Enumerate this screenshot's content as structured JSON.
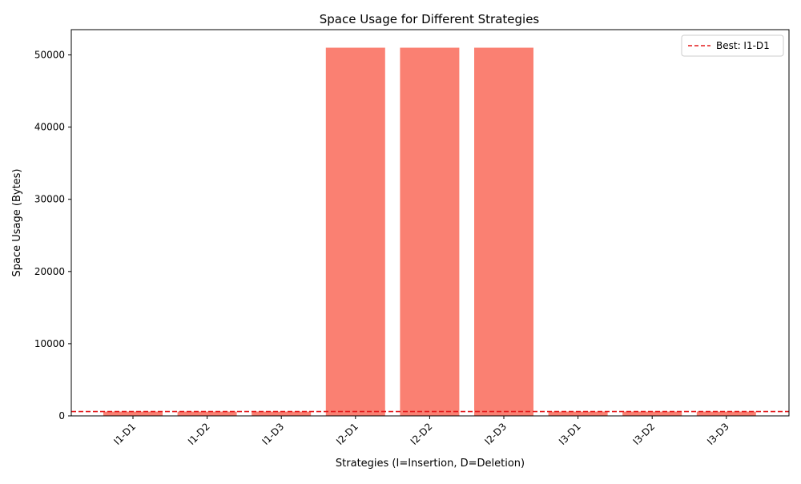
{
  "chart_data": {
    "type": "bar",
    "title": "Space Usage for Different Strategies",
    "xlabel": "Strategies (I=Insertion, D=Deletion)",
    "ylabel": "Space Usage (Bytes)",
    "categories": [
      "I1-D1",
      "I1-D2",
      "I1-D3",
      "I2-D1",
      "I2-D2",
      "I2-D3",
      "I3-D1",
      "I3-D2",
      "I3-D3"
    ],
    "values": [
      600,
      600,
      600,
      51000,
      51000,
      51000,
      600,
      600,
      600
    ],
    "ylim": [
      0,
      53500
    ],
    "yticks": [
      0,
      10000,
      20000,
      30000,
      40000,
      50000
    ],
    "bar_color": "#fa8072",
    "reference_line": {
      "value": 600,
      "label": "Best: I1-D1",
      "color": "#e41a1c",
      "style": "dashed"
    },
    "legend_position": "top-right",
    "grid": false
  }
}
